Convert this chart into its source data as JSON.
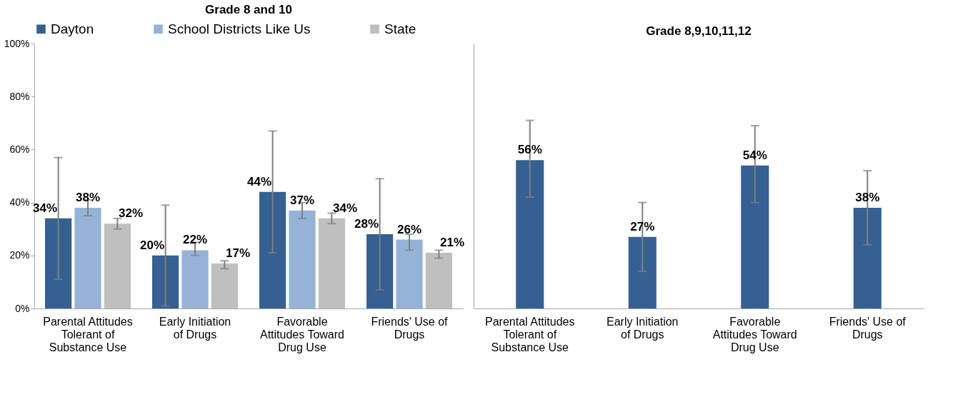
{
  "chart_data": [
    {
      "type": "bar",
      "title": "Grade 8 and 10",
      "categories": [
        "Parental Attitudes Tolerant of Substance Use",
        "Early Initiation of Drugs",
        "Favorable Attitudes Toward Drug Use",
        "Friends' Use of Drugs"
      ],
      "series": [
        {
          "name": "Dayton",
          "color": "#366092",
          "values": [
            34,
            20,
            44,
            28
          ],
          "value_labels": [
            "34%",
            "20%",
            "44%",
            "28%"
          ],
          "errors": [
            [
              11,
              57
            ],
            [
              1,
              39
            ],
            [
              21,
              67
            ],
            [
              7,
              49
            ]
          ]
        },
        {
          "name": "School Districts Like Us",
          "color": "#95b3d7",
          "values": [
            38,
            22,
            37,
            26
          ],
          "value_labels": [
            "38%",
            "22%",
            "37%",
            "26%"
          ],
          "errors": [
            [
              35,
              41
            ],
            [
              20,
              25
            ],
            [
              34,
              40
            ],
            [
              22,
              28
            ]
          ]
        },
        {
          "name": "State",
          "color": "#bfbfbf",
          "values": [
            32,
            17,
            34,
            21
          ],
          "value_labels": [
            "32%",
            "17%",
            "34%",
            "21%"
          ],
          "errors": [
            [
              30,
              34
            ],
            [
              15,
              18
            ],
            [
              32,
              36
            ],
            [
              19,
              22
            ]
          ]
        }
      ],
      "ylim": [
        0,
        100
      ],
      "yticks": [
        {
          "value": 0,
          "label": "0%"
        },
        {
          "value": 20,
          "label": "20%"
        },
        {
          "value": 40,
          "label": "40%"
        },
        {
          "value": 60,
          "label": "60%"
        },
        {
          "value": 80,
          "label": "80%"
        },
        {
          "value": 100,
          "label": "100%"
        }
      ],
      "legend": "top"
    },
    {
      "type": "bar",
      "title": "Grade 8,9,10,11,12",
      "categories": [
        "Parental Attitudes Tolerant of Substance Use",
        "Early Initiation of Drugs",
        "Favorable Attitudes Toward Drug Use",
        "Friends' Use of Drugs"
      ],
      "series": [
        {
          "color": "#366092",
          "values": [
            56,
            27,
            54,
            38
          ],
          "value_labels": [
            "56%",
            "27%",
            "54%",
            "38%"
          ],
          "errors": [
            [
              42,
              71
            ],
            [
              14,
              40
            ],
            [
              40,
              69
            ],
            [
              24,
              52
            ]
          ]
        }
      ],
      "ylim": [
        0,
        100
      ],
      "tick_labels": "x"
    }
  ]
}
